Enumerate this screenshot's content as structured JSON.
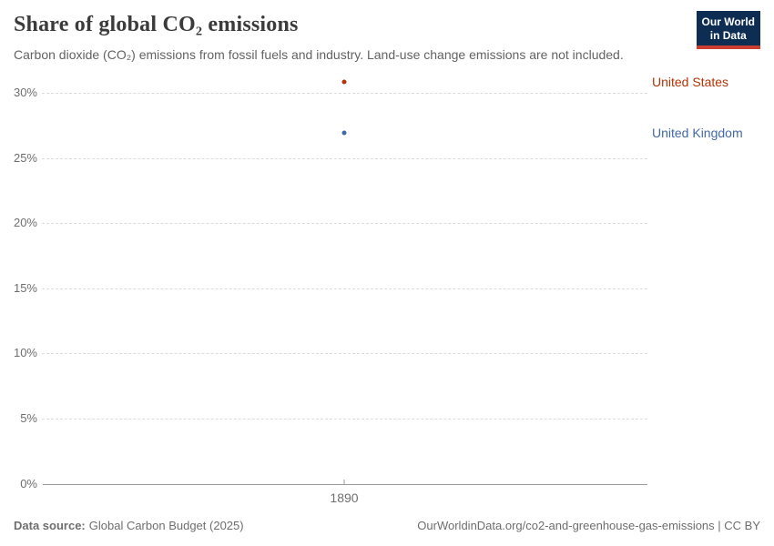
{
  "chart_data": {
    "type": "scatter",
    "title": "Share of global CO₂ emissions",
    "subtitle": "Carbon dioxide (CO₂) emissions from fossil fuels and industry. Land-use change emissions are not included.",
    "x": [
      1890
    ],
    "series": [
      {
        "name": "United States",
        "values": [
          30.8
        ],
        "color": "#b13507"
      },
      {
        "name": "United Kingdom",
        "values": [
          26.9
        ],
        "color": "#4269a5"
      }
    ],
    "xticks": [
      1890
    ],
    "yticks": [
      0,
      5,
      10,
      15,
      20,
      25,
      30
    ],
    "ytick_suffix": "%",
    "ylim": [
      0,
      31.5
    ],
    "xlabel": "",
    "ylabel": "",
    "grid": "horizontal-dashed",
    "legend_position": "labels-right-of-plot"
  },
  "logo": {
    "line1": "Our World",
    "line2": "in Data",
    "bg_color": "#0d2d52",
    "accent_color": "#cb3c33"
  },
  "footer": {
    "datasource_label": "Data source:",
    "datasource": "Global Carbon Budget (2025)",
    "license": "OurWorldinData.org/co2-and-greenhouse-gas-emissions | CC BY"
  }
}
